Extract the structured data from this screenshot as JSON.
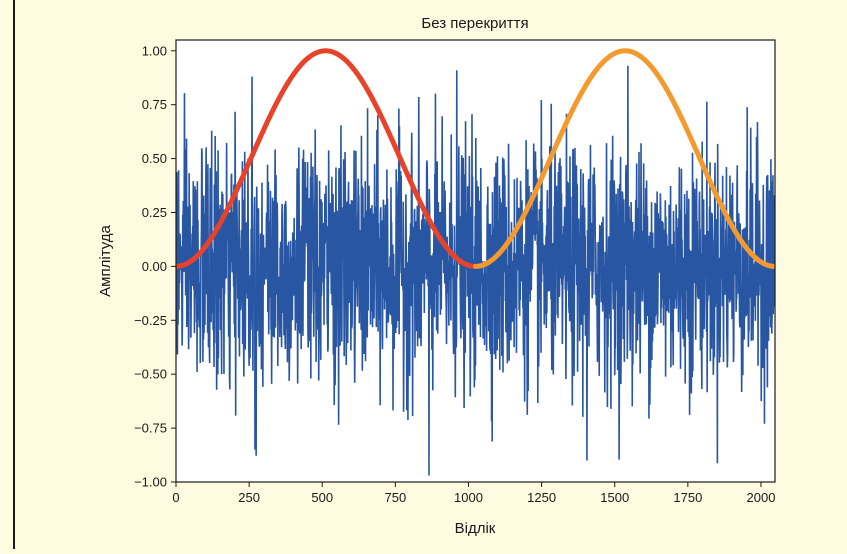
{
  "chart_data": {
    "type": "line",
    "title": "Без перекриття",
    "xlabel": "Відлік",
    "ylabel": "Амплітуда",
    "xlim": [
      0,
      2048
    ],
    "ylim": [
      -1.0,
      1.05
    ],
    "xticks": [
      0,
      250,
      500,
      750,
      1000,
      1250,
      1500,
      1750,
      2000
    ],
    "xtick_labels": [
      "0",
      "250",
      "500",
      "750",
      "1000",
      "1250",
      "1500",
      "1750",
      "2000"
    ],
    "yticks": [
      -1.0,
      -0.75,
      -0.5,
      -0.25,
      0.0,
      0.25,
      0.5,
      0.75,
      1.0
    ],
    "ytick_labels": [
      "−1.00",
      "−0.75",
      "−0.50",
      "−0.25",
      "0.00",
      "0.25",
      "0.50",
      "0.75",
      "1.00"
    ],
    "grid": false,
    "series": [
      {
        "color": "#2856a3",
        "kind": "noise",
        "x_range": [
          0,
          2048
        ],
        "y_approx_range": [
          -0.98,
          0.93
        ],
        "noted_peaks": [
          {
            "x": 260,
            "y": 0.88
          },
          {
            "x": 960,
            "y": 0.91
          },
          {
            "x": 1545,
            "y": 0.93
          },
          {
            "x": 865,
            "y": -0.97
          },
          {
            "x": 1405,
            "y": -0.9
          },
          {
            "x": 270,
            "y": -0.85
          }
        ]
      },
      {
        "color": "#e8422a",
        "kind": "window",
        "x_range": [
          0,
          1023
        ],
        "center": 512,
        "peak": 1.0
      },
      {
        "color": "#f49a2c",
        "kind": "window",
        "x_range": [
          1024,
          2047
        ],
        "center": 1536,
        "peak": 1.0
      }
    ]
  }
}
